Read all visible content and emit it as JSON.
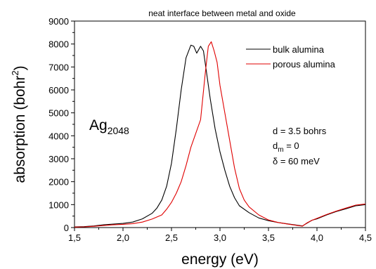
{
  "chart_data": {
    "type": "line",
    "title": "neat interface between metal and oxide",
    "xlabel": "energy (eV)",
    "ylabel_main": "absorption (bohr",
    "ylabel_sup": "2",
    "ylabel_close": ")",
    "xlim": [
      1.5,
      4.5
    ],
    "ylim": [
      0,
      9000
    ],
    "x_ticks": [
      1.5,
      2.0,
      2.5,
      3.0,
      3.5,
      4.0,
      4.5
    ],
    "x_tick_labels": [
      "1,5",
      "2,0",
      "2,5",
      "3,0",
      "3,5",
      "4,0",
      "4,5"
    ],
    "y_ticks": [
      0,
      1000,
      2000,
      3000,
      4000,
      5000,
      6000,
      7000,
      8000,
      9000
    ],
    "y_tick_labels": [
      "0",
      "1000",
      "2000",
      "3000",
      "4000",
      "5000",
      "6000",
      "7000",
      "8000",
      "9000"
    ],
    "legend_position": "top-right",
    "series": [
      {
        "name": "bulk alumina",
        "color": "#000000",
        "points": [
          [
            1.5,
            30
          ],
          [
            1.6,
            40
          ],
          [
            1.7,
            70
          ],
          [
            1.8,
            120
          ],
          [
            1.9,
            150
          ],
          [
            2.0,
            180
          ],
          [
            2.1,
            240
          ],
          [
            2.2,
            380
          ],
          [
            2.3,
            620
          ],
          [
            2.35,
            850
          ],
          [
            2.4,
            1200
          ],
          [
            2.45,
            1800
          ],
          [
            2.5,
            2800
          ],
          [
            2.55,
            4300
          ],
          [
            2.6,
            6000
          ],
          [
            2.65,
            7400
          ],
          [
            2.7,
            7950
          ],
          [
            2.73,
            7900
          ],
          [
            2.76,
            7600
          ],
          [
            2.8,
            7900
          ],
          [
            2.83,
            7700
          ],
          [
            2.86,
            6800
          ],
          [
            2.9,
            5600
          ],
          [
            2.95,
            4300
          ],
          [
            3.0,
            3300
          ],
          [
            3.05,
            2500
          ],
          [
            3.1,
            1800
          ],
          [
            3.15,
            1300
          ],
          [
            3.2,
            950
          ],
          [
            3.3,
            650
          ],
          [
            3.4,
            420
          ],
          [
            3.5,
            300
          ],
          [
            3.6,
            220
          ],
          [
            3.7,
            160
          ],
          [
            3.8,
            100
          ],
          [
            3.85,
            70
          ],
          [
            3.9,
            200
          ],
          [
            3.95,
            320
          ],
          [
            4.0,
            380
          ],
          [
            4.1,
            550
          ],
          [
            4.2,
            700
          ],
          [
            4.3,
            820
          ],
          [
            4.4,
            950
          ],
          [
            4.5,
            1000
          ]
        ]
      },
      {
        "name": "porous alumina",
        "color": "#e00000",
        "points": [
          [
            1.5,
            20
          ],
          [
            1.6,
            30
          ],
          [
            1.7,
            55
          ],
          [
            1.8,
            90
          ],
          [
            1.9,
            120
          ],
          [
            2.0,
            140
          ],
          [
            2.1,
            170
          ],
          [
            2.2,
            240
          ],
          [
            2.3,
            370
          ],
          [
            2.4,
            550
          ],
          [
            2.45,
            800
          ],
          [
            2.5,
            1100
          ],
          [
            2.55,
            1500
          ],
          [
            2.6,
            2000
          ],
          [
            2.65,
            2700
          ],
          [
            2.7,
            3500
          ],
          [
            2.75,
            4100
          ],
          [
            2.8,
            4700
          ],
          [
            2.85,
            6800
          ],
          [
            2.88,
            7900
          ],
          [
            2.91,
            8100
          ],
          [
            2.94,
            7700
          ],
          [
            2.97,
            7200
          ],
          [
            3.0,
            6200
          ],
          [
            3.05,
            5000
          ],
          [
            3.1,
            3800
          ],
          [
            3.15,
            2600
          ],
          [
            3.2,
            1700
          ],
          [
            3.25,
            1200
          ],
          [
            3.3,
            900
          ],
          [
            3.4,
            550
          ],
          [
            3.5,
            330
          ],
          [
            3.6,
            220
          ],
          [
            3.7,
            150
          ],
          [
            3.8,
            90
          ],
          [
            3.85,
            60
          ],
          [
            3.9,
            210
          ],
          [
            3.95,
            320
          ],
          [
            4.0,
            400
          ],
          [
            4.1,
            570
          ],
          [
            4.2,
            720
          ],
          [
            4.3,
            850
          ],
          [
            4.4,
            980
          ],
          [
            4.5,
            1030
          ]
        ]
      }
    ],
    "annotations": {
      "species_base": "Ag",
      "species_sub": "2048",
      "param_d": "d = 3.5 bohrs",
      "param_dm_base": "d",
      "param_dm_sub": "m",
      "param_dm_value": " = 0",
      "param_delta": "δ = 60 meV"
    }
  }
}
